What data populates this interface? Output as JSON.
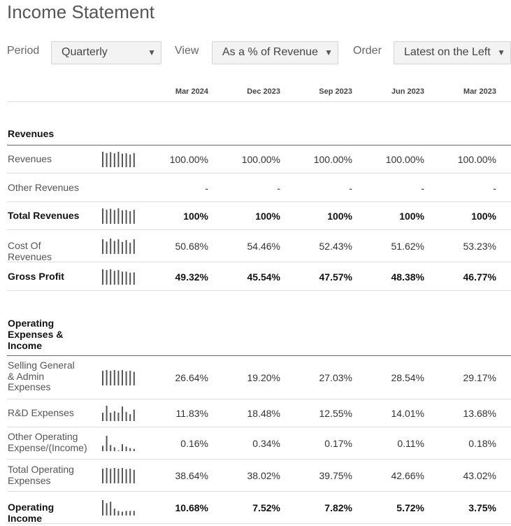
{
  "page_title": "Income Statement",
  "controls": {
    "period": {
      "label": "Period",
      "value": "Quarterly"
    },
    "view": {
      "label": "View",
      "value": "As a % of Revenue"
    },
    "order": {
      "label": "Order",
      "value": "Latest on the Left"
    }
  },
  "columns": [
    "Mar 2024",
    "Dec 2023",
    "Sep 2023",
    "Jun 2023",
    "Mar 2023"
  ],
  "sections": [
    {
      "title": "Revenues",
      "rows": [
        {
          "label": "Revenues",
          "bold": false,
          "sparkline": [
            1.0,
            0.92,
            0.98,
            0.9,
            1.0,
            0.88,
            0.9,
            0.82,
            0.92
          ],
          "values": [
            "100.00%",
            "100.00%",
            "100.00%",
            "100.00%",
            "100.00%"
          ]
        },
        {
          "label": "Other Revenues",
          "bold": false,
          "sparkline": [],
          "values": [
            "-",
            "-",
            "-",
            "-",
            "-"
          ]
        },
        {
          "label": "Total Revenues",
          "bold": true,
          "sparkline": [
            1.0,
            0.92,
            0.98,
            0.9,
            1.0,
            0.88,
            0.9,
            0.82,
            0.92
          ],
          "values": [
            "100%",
            "100%",
            "100%",
            "100%",
            "100%"
          ]
        },
        {
          "label": "Cost Of Revenues",
          "bold": false,
          "sparkline": [
            0.95,
            0.8,
            1.0,
            0.85,
            0.95,
            0.78,
            0.9,
            0.72,
            0.95
          ],
          "values": [
            "50.68%",
            "54.46%",
            "52.43%",
            "51.62%",
            "53.23%"
          ]
        },
        {
          "label": "Gross Profit",
          "bold": true,
          "sparkline": [
            1.0,
            0.95,
            1.0,
            0.9,
            0.95,
            0.85,
            0.85,
            0.78,
            0.8
          ],
          "values": [
            "49.32%",
            "45.54%",
            "47.57%",
            "48.38%",
            "46.77%"
          ]
        }
      ]
    },
    {
      "title": "Operating Expenses & Income",
      "rows": [
        {
          "label": "Selling General & Admin Expenses",
          "bold": false,
          "sparkline": [
            0.95,
            1.0,
            0.95,
            1.0,
            0.95,
            1.0,
            0.92,
            0.95,
            0.88
          ],
          "values": [
            "26.64%",
            "19.20%",
            "27.03%",
            "28.54%",
            "29.17%"
          ]
        },
        {
          "label": "R&D Expenses",
          "bold": false,
          "sparkline": [
            0.55,
            1.0,
            0.55,
            0.65,
            0.55,
            0.95,
            0.6,
            0.45,
            0.75
          ],
          "values": [
            "11.83%",
            "18.48%",
            "12.55%",
            "14.01%",
            "13.68%"
          ]
        },
        {
          "label": "Other Operating Expense/(Income)",
          "bold": false,
          "sparkline": [
            0.35,
            1.0,
            0.4,
            0.25,
            0.0,
            0.45,
            0.3,
            0.2,
            0.15
          ],
          "values": [
            "0.16%",
            "0.34%",
            "0.17%",
            "0.11%",
            "0.18%"
          ]
        },
        {
          "label": "Total Operating Expenses",
          "bold": false,
          "sparkline": [
            0.95,
            1.0,
            0.95,
            1.0,
            0.95,
            1.0,
            0.92,
            0.95,
            0.88
          ],
          "values": [
            "38.64%",
            "38.02%",
            "39.75%",
            "42.66%",
            "43.02%"
          ]
        },
        {
          "label": "Operating Income",
          "bold": true,
          "sparkline": [
            1.0,
            0.8,
            0.9,
            0.45,
            0.3,
            0.25,
            0.3,
            0.3,
            0.3
          ],
          "values": [
            "10.68%",
            "7.52%",
            "7.82%",
            "5.72%",
            "3.75%"
          ]
        }
      ]
    }
  ]
}
